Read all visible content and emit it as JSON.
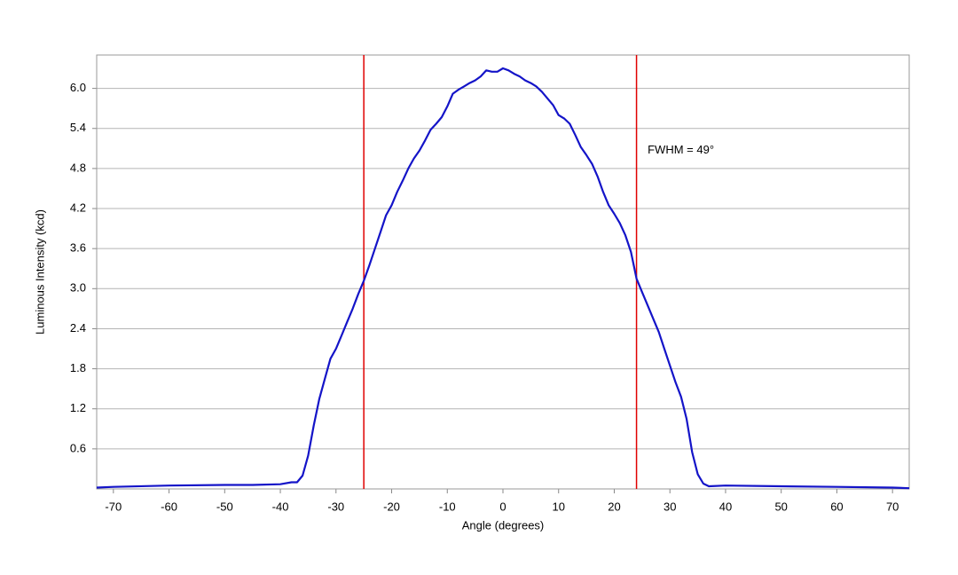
{
  "chart_data": {
    "type": "line",
    "x_label": "Angle (degrees)",
    "y_label": "Luminous Intensity (kcd)",
    "xlim": [
      -73,
      73
    ],
    "ylim": [
      0,
      6.5
    ],
    "xticks": [
      -70,
      -60,
      -50,
      -40,
      -30,
      -20,
      -10,
      0,
      10,
      20,
      30,
      40,
      50,
      60,
      70
    ],
    "yticks": [
      0.6,
      1.2,
      1.8,
      2.4,
      {
        "value": 3,
        "label": "3.0"
      },
      3.6,
      4.2,
      4.8,
      5.4,
      {
        "value": 6,
        "label": "6.0"
      }
    ],
    "grid": true,
    "x": [
      -73,
      -70,
      -60,
      -50,
      -45,
      -40,
      -38,
      -37,
      -36,
      -35,
      -34,
      -33,
      -32,
      -31,
      -30,
      -29,
      -28,
      -27,
      -26,
      -25,
      -24,
      -23,
      -22,
      -21,
      -20,
      -19,
      -18,
      -17,
      -16,
      -15,
      -14,
      -13,
      -12,
      -11,
      -10,
      -9,
      -8,
      -7,
      -6,
      -5,
      -4,
      -3,
      -2,
      -1,
      0,
      1,
      2,
      3,
      4,
      5,
      6,
      7,
      8,
      9,
      10,
      11,
      12,
      13,
      14,
      15,
      16,
      17,
      18,
      19,
      20,
      21,
      22,
      23,
      24,
      25,
      26,
      27,
      28,
      29,
      30,
      31,
      32,
      33,
      34,
      35,
      36,
      37,
      40,
      50,
      60,
      70,
      73
    ],
    "series": [
      {
        "color": "#1414c8",
        "values": [
          0.02,
          0.03,
          0.05,
          0.06,
          0.06,
          0.07,
          0.1,
          0.1,
          0.2,
          0.5,
          0.95,
          1.35,
          1.65,
          1.95,
          2.1,
          2.3,
          2.5,
          2.7,
          2.92,
          3.12,
          3.35,
          3.6,
          3.85,
          4.1,
          4.25,
          4.45,
          4.62,
          4.8,
          4.95,
          5.07,
          5.22,
          5.38,
          5.47,
          5.57,
          5.73,
          5.92,
          5.98,
          6.03,
          6.08,
          6.12,
          6.18,
          6.27,
          6.25,
          6.25,
          6.3,
          6.27,
          6.22,
          6.18,
          6.12,
          6.08,
          6.03,
          5.95,
          5.85,
          5.75,
          5.6,
          5.55,
          5.47,
          5.3,
          5.12,
          5.0,
          4.87,
          4.68,
          4.45,
          4.25,
          4.12,
          3.98,
          3.8,
          3.55,
          3.15,
          2.95,
          2.75,
          2.55,
          2.35,
          2.1,
          1.85,
          1.6,
          1.38,
          1.05,
          0.55,
          0.22,
          0.08,
          0.04,
          0.05,
          0.04,
          0.03,
          0.02,
          0.01
        ]
      }
    ],
    "vlines": [
      {
        "value": -25,
        "color": "#e00000"
      },
      {
        "value": 24,
        "color": "#e00000"
      }
    ],
    "annotation": {
      "text": "FWHM = 49°",
      "x": 26,
      "y": 5.07
    }
  }
}
